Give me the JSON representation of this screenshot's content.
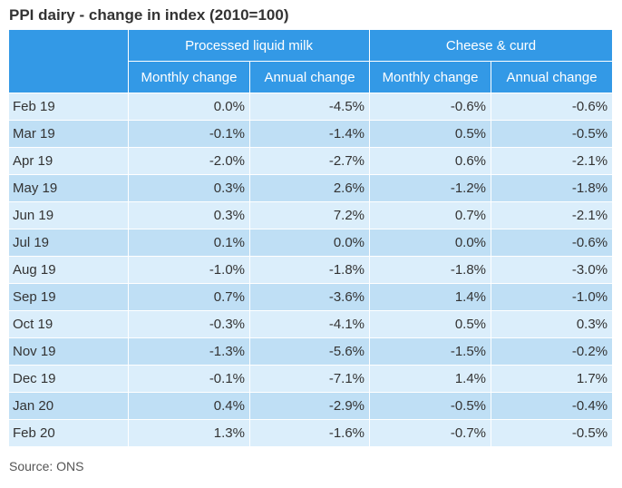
{
  "title": "PPI dairy - change in index (2010=100)",
  "groups": [
    "Processed liquid milk",
    "Cheese & curd"
  ],
  "subheaders": [
    "Monthly change",
    "Annual change",
    "Monthly change",
    "Annual change"
  ],
  "rows": [
    {
      "month": "Feb 19",
      "milk_monthly": "0.0%",
      "milk_annual": "-4.5%",
      "cheese_monthly": "-0.6%",
      "cheese_annual": "-0.6%"
    },
    {
      "month": "Mar 19",
      "milk_monthly": "-0.1%",
      "milk_annual": "-1.4%",
      "cheese_monthly": "0.5%",
      "cheese_annual": "-0.5%"
    },
    {
      "month": "Apr 19",
      "milk_monthly": "-2.0%",
      "milk_annual": "-2.7%",
      "cheese_monthly": "0.6%",
      "cheese_annual": "-2.1%"
    },
    {
      "month": "May 19",
      "milk_monthly": "0.3%",
      "milk_annual": "2.6%",
      "cheese_monthly": "-1.2%",
      "cheese_annual": "-1.8%"
    },
    {
      "month": "Jun 19",
      "milk_monthly": "0.3%",
      "milk_annual": "7.2%",
      "cheese_monthly": "0.7%",
      "cheese_annual": "-2.1%"
    },
    {
      "month": "Jul 19",
      "milk_monthly": "0.1%",
      "milk_annual": "0.0%",
      "cheese_monthly": "0.0%",
      "cheese_annual": "-0.6%"
    },
    {
      "month": "Aug 19",
      "milk_monthly": "-1.0%",
      "milk_annual": "-1.8%",
      "cheese_monthly": "-1.8%",
      "cheese_annual": "-3.0%"
    },
    {
      "month": "Sep 19",
      "milk_monthly": "0.7%",
      "milk_annual": "-3.6%",
      "cheese_monthly": "1.4%",
      "cheese_annual": "-1.0%"
    },
    {
      "month": "Oct 19",
      "milk_monthly": "-0.3%",
      "milk_annual": "-4.1%",
      "cheese_monthly": "0.5%",
      "cheese_annual": "0.3%"
    },
    {
      "month": "Nov 19",
      "milk_monthly": "-1.3%",
      "milk_annual": "-5.6%",
      "cheese_monthly": "-1.5%",
      "cheese_annual": "-0.2%"
    },
    {
      "month": "Dec 19",
      "milk_monthly": "-0.1%",
      "milk_annual": "-7.1%",
      "cheese_monthly": "1.4%",
      "cheese_annual": "1.7%"
    },
    {
      "month": "Jan 20",
      "milk_monthly": "0.4%",
      "milk_annual": "-2.9%",
      "cheese_monthly": "-0.5%",
      "cheese_annual": "-0.4%"
    },
    {
      "month": "Feb 20",
      "milk_monthly": "1.3%",
      "milk_annual": "-1.6%",
      "cheese_monthly": "-0.7%",
      "cheese_annual": "-0.5%"
    }
  ],
  "source": "Source: ONS",
  "colors": {
    "header_bg": "#3399e6",
    "row_light": "#dbeefb",
    "row_dark": "#bfdff5"
  }
}
